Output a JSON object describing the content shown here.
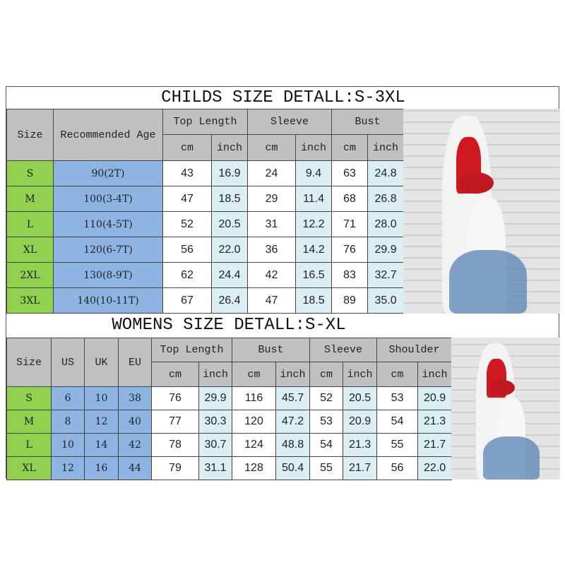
{
  "childs": {
    "title": "CHILDS SIZE DETALL:S-3XL",
    "headers": {
      "size": "Size",
      "age": "Recommended Age",
      "top_length": "Top Length",
      "sleeve": "Sleeve",
      "bust": "Bust",
      "cm": "cm",
      "inch": "inch"
    },
    "rows": [
      [
        "S",
        "90(2T)",
        "43",
        "16.9",
        "24",
        "9.4",
        "63",
        "24.8"
      ],
      [
        "M",
        "100(3-4T)",
        "47",
        "18.5",
        "29",
        "11.4",
        "68",
        "26.8"
      ],
      [
        "L",
        "110(4-5T)",
        "52",
        "20.5",
        "31",
        "12.2",
        "71",
        "28.0"
      ],
      [
        "XL",
        "120(6-7T)",
        "56",
        "22.0",
        "36",
        "14.2",
        "76",
        "29.9"
      ],
      [
        "2XL",
        "130(8-9T)",
        "62",
        "24.4",
        "42",
        "16.5",
        "83",
        "32.7"
      ],
      [
        "3XL",
        "140(10-11T)",
        "67",
        "26.4",
        "47",
        "18.5",
        "89",
        "35.0"
      ]
    ]
  },
  "womens": {
    "title": "WOMENS SIZE DETALL:S-XL",
    "headers": {
      "size": "Size",
      "us": "US",
      "uk": "UK",
      "eu": "EU",
      "top_length": "Top Length",
      "bust": "Bust",
      "sleeve": "Sleeve",
      "shoulder": "Shoulder",
      "cm": "cm",
      "inch": "inch"
    },
    "rows": [
      [
        "S",
        "6",
        "10",
        "38",
        "76",
        "29.9",
        "116",
        "45.7",
        "52",
        "20.5",
        "53",
        "20.9"
      ],
      [
        "M",
        "8",
        "12",
        "40",
        "77",
        "30.3",
        "120",
        "47.2",
        "53",
        "20.9",
        "54",
        "21.3"
      ],
      [
        "L",
        "10",
        "14",
        "42",
        "78",
        "30.7",
        "124",
        "48.8",
        "54",
        "21.3",
        "55",
        "21.7"
      ],
      [
        "XL",
        "12",
        "16",
        "44",
        "79",
        "31.1",
        "128",
        "50.4",
        "55",
        "21.7",
        "56",
        "22.0"
      ]
    ]
  },
  "colors": {
    "header": "#c0c0c0",
    "size_col": "#92d050",
    "info_col": "#8db4e2",
    "inch_col": "#dbeef3"
  }
}
